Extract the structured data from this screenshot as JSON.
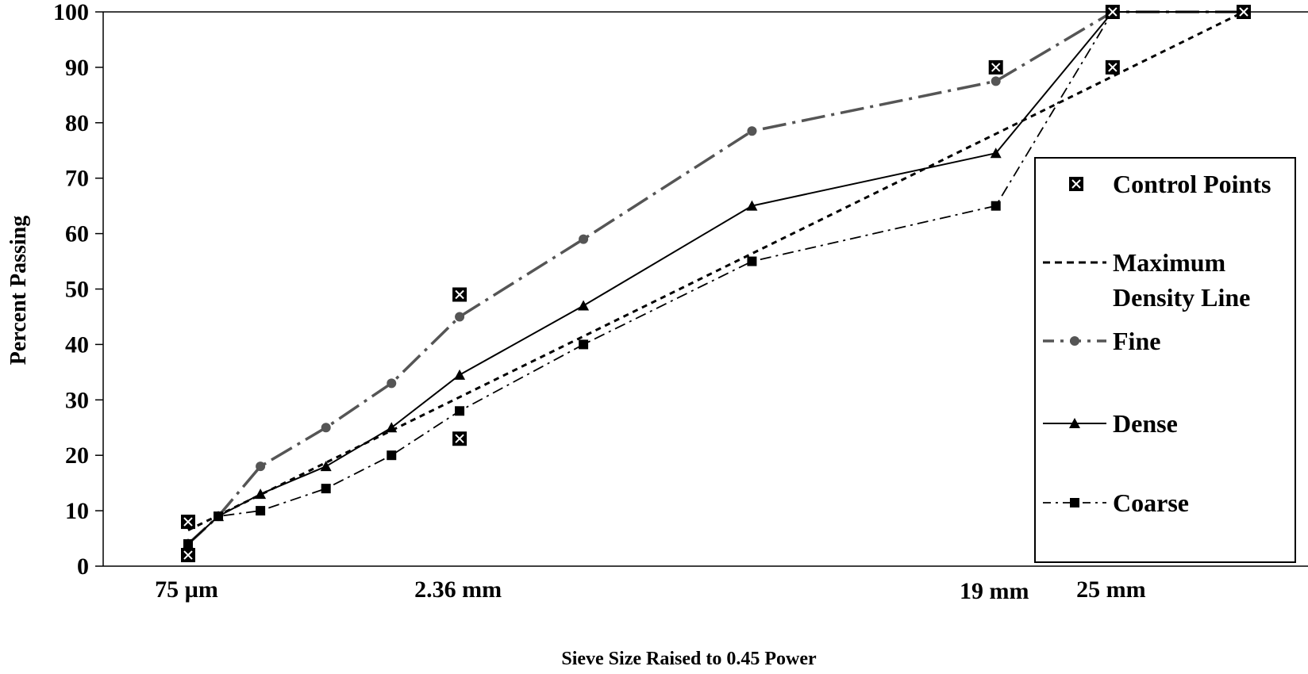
{
  "chart_data": {
    "type": "line",
    "title": "",
    "xlabel": "Sieve Size Raised to 0.45 Power",
    "ylabel": "Percent Passing",
    "ylim": [
      0,
      100
    ],
    "yticks": [
      0,
      10,
      20,
      30,
      40,
      50,
      60,
      70,
      80,
      90,
      100
    ],
    "xlim": [
      0,
      5.0
    ],
    "xscale": "sieve size raised to 0.45 power",
    "xtick_labels": [
      {
        "label": "75 µm",
        "x": 0.311
      },
      {
        "label": "2.36 mm",
        "x": 1.471
      },
      {
        "label": "19 mm",
        "x": 3.762
      },
      {
        "label": "25 mm",
        "x": 4.261
      }
    ],
    "grid": false,
    "legend_position": "right",
    "legend": [
      {
        "label": "Control Points",
        "key": "control"
      },
      {
        "label": "Maximum Density Line",
        "label_lines": [
          "Maximum",
          "Density Line"
        ],
        "key": "mdl"
      },
      {
        "label": "Fine",
        "key": "fine"
      },
      {
        "label": "Dense",
        "key": "dense"
      },
      {
        "label": "Coarse",
        "key": "coarse"
      }
    ],
    "control_points": [
      {
        "x": 0.311,
        "y": 2
      },
      {
        "x": 0.311,
        "y": 8
      },
      {
        "x": 1.471,
        "y": 23
      },
      {
        "x": 1.471,
        "y": 49
      },
      {
        "x": 3.762,
        "y": 90
      },
      {
        "x": 4.261,
        "y": 90
      },
      {
        "x": 4.261,
        "y": 100
      },
      {
        "x": 4.821,
        "y": 100
      }
    ],
    "series": [
      {
        "key": "mdl",
        "style": "dashed",
        "color": "#000000",
        "x": [
          0.311,
          1.471,
          3.762,
          4.821
        ],
        "y": [
          6.5,
          30.5,
          78.0,
          100
        ]
      },
      {
        "key": "fine",
        "style": "dash-dot",
        "color": "#555555",
        "marker": "circle",
        "x": [
          0.311,
          0.44,
          0.62,
          0.9,
          1.18,
          1.471,
          2.0,
          2.72,
          3.762,
          4.261,
          4.821
        ],
        "y": [
          4,
          9,
          18,
          25,
          33,
          45,
          59,
          78.5,
          87.5,
          100,
          100
        ]
      },
      {
        "key": "dense",
        "style": "solid",
        "color": "#000000",
        "marker": "triangle",
        "x": [
          0.311,
          0.44,
          0.62,
          0.9,
          1.18,
          1.471,
          2.0,
          2.72,
          3.762,
          4.261,
          4.821
        ],
        "y": [
          4,
          9,
          13,
          18,
          25,
          34.5,
          47,
          65,
          74.5,
          100,
          100
        ]
      },
      {
        "key": "coarse",
        "style": "dash-dot",
        "color": "#000000",
        "marker": "square",
        "x": [
          0.311,
          0.44,
          0.62,
          0.9,
          1.18,
          1.471,
          2.0,
          2.72,
          3.762,
          4.261,
          4.821
        ],
        "y": [
          4,
          9,
          10,
          14,
          20,
          28,
          40,
          55,
          65,
          100,
          100
        ]
      }
    ]
  }
}
